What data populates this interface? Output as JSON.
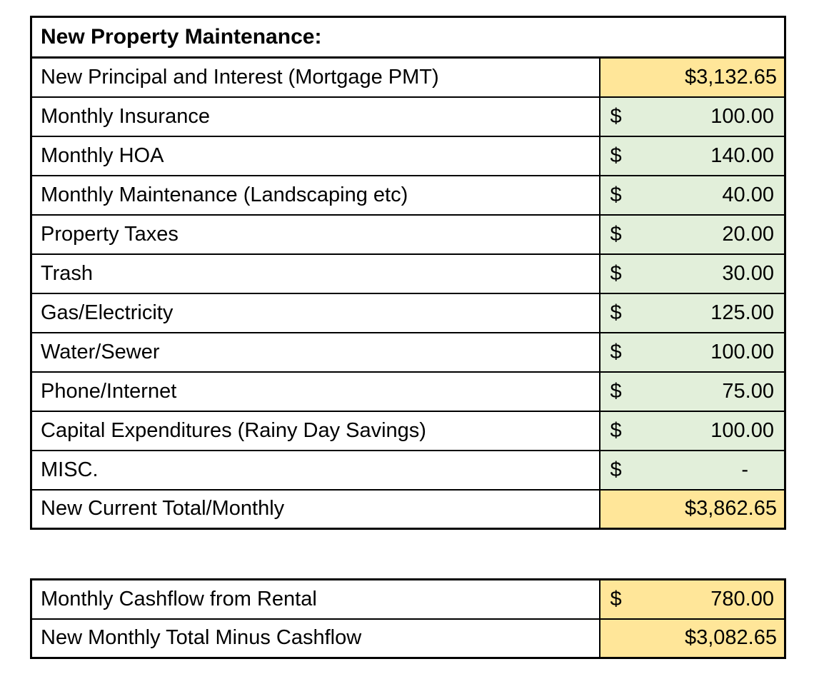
{
  "colors": {
    "highlight_gold": "#FFE699",
    "highlight_green": "#E2EFDA",
    "border": "#000000",
    "background": "#FFFFFF"
  },
  "main_table": {
    "header": "New Property Maintenance:",
    "rows": [
      {
        "label": "New Principal and Interest (Mortgage PMT)",
        "value": "$3,132.65",
        "style": "gold"
      },
      {
        "label": "Monthly Insurance",
        "currency": "$",
        "amount": "100.00",
        "style": "green"
      },
      {
        "label": "Monthly HOA",
        "currency": "$",
        "amount": "140.00",
        "style": "green"
      },
      {
        "label": "Monthly Maintenance (Landscaping etc)",
        "currency": "$",
        "amount": "40.00",
        "style": "green"
      },
      {
        "label": "Property Taxes",
        "currency": "$",
        "amount": "20.00",
        "style": "green"
      },
      {
        "label": "Trash",
        "currency": "$",
        "amount": "30.00",
        "style": "green"
      },
      {
        "label": "Gas/Electricity",
        "currency": "$",
        "amount": "125.00",
        "style": "green"
      },
      {
        "label": "Water/Sewer",
        "currency": "$",
        "amount": "100.00",
        "style": "green"
      },
      {
        "label": "Phone/Internet",
        "currency": "$",
        "amount": "75.00",
        "style": "green"
      },
      {
        "label": "Capital Expenditures (Rainy Day Savings)",
        "currency": "$",
        "amount": "100.00",
        "style": "green"
      },
      {
        "label": "MISC.",
        "currency": "$",
        "amount": "-",
        "style": "green"
      },
      {
        "label": "New Current Total/Monthly",
        "value": "$3,862.65",
        "style": "gold"
      }
    ]
  },
  "summary_table": {
    "rows": [
      {
        "label": "Monthly Cashflow from Rental",
        "currency": "$",
        "amount": "780.00",
        "style": "gold"
      },
      {
        "label": "New Monthly Total Minus Cashflow",
        "value": "$3,082.65",
        "style": "gold"
      }
    ]
  }
}
